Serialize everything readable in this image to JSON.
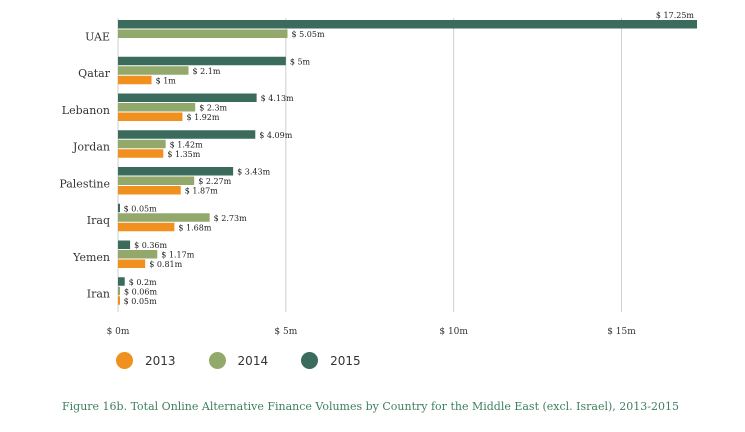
{
  "chart_data": {
    "type": "bar",
    "orientation": "horizontal",
    "categories": [
      "UAE",
      "Qatar",
      "Lebanon",
      "Jordan",
      "Palestine",
      "Iraq",
      "Yemen",
      "Iran"
    ],
    "series": [
      {
        "name": "2013",
        "color": "#f0901f",
        "values": [
          null,
          1,
          1.92,
          1.35,
          1.87,
          1.68,
          0.81,
          0.05
        ],
        "labels": [
          "",
          "$ 1m",
          "$ 1.92m",
          "$ 1.35m",
          "$ 1.87m",
          "$ 1.68m",
          "$ 0.81m",
          "$ 0.05m"
        ]
      },
      {
        "name": "2014",
        "color": "#93a96b",
        "values": [
          5.05,
          2.1,
          2.3,
          1.42,
          2.27,
          2.73,
          1.17,
          0.06
        ],
        "labels": [
          "$ 5.05m",
          "$ 2.1m",
          "$ 2.3m",
          "$ 1.42m",
          "$ 2.27m",
          "$ 2.73m",
          "$ 1.17m",
          "$ 0.06m"
        ]
      },
      {
        "name": "2015",
        "color": "#3a6b5c",
        "values": [
          17.25,
          5,
          4.13,
          4.09,
          3.43,
          0.05,
          0.36,
          0.2
        ],
        "labels": [
          "$ 17.25m",
          "$ 5m",
          "$ 4.13m",
          "$ 4.09m",
          "$ 3.43m",
          "$ 0.05m",
          "$ 0.36m",
          "$ 0.2m"
        ]
      }
    ],
    "xticks": [
      0,
      5,
      10,
      15
    ],
    "xtick_labels": [
      "$ 0m",
      "$ 5m",
      "$ 10m",
      "$ 15m"
    ],
    "xlim": [
      0,
      17.25
    ],
    "grid": "vertical",
    "legend_placement": "bottom-left",
    "title": "Figure 16b. Total Online Alternative Finance Volumes by Country for the Middle East (excl. Israel), 2013-2015"
  }
}
